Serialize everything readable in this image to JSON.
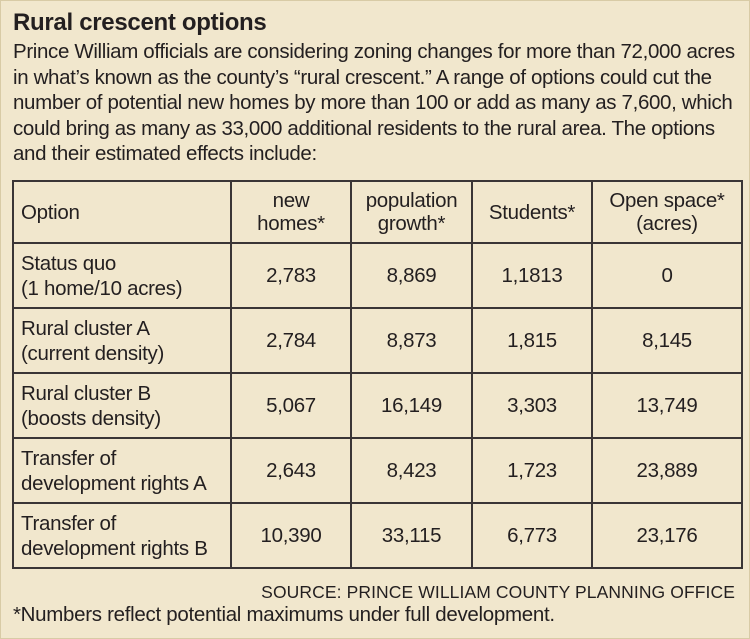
{
  "title": "Rural crescent options",
  "intro": "Prince William officials are considering zoning changes for more than 72,000 acres in what’s known as the county’s “rural crescent.” A range of options could cut the number of potential new homes by more than 100 or add as many as 7,600, which could bring as many as 33,000 additional residents to the rural area. The options and their estimated effects include:",
  "table": {
    "headers": {
      "option": "Option",
      "new_homes": [
        "new",
        "homes*"
      ],
      "population_growth": [
        "population",
        "growth*"
      ],
      "students": "Students*",
      "open_space": [
        "Open space*",
        "(acres)"
      ]
    },
    "rows": [
      {
        "option": [
          "Status quo",
          "(1 home/10 acres)"
        ],
        "new_homes": "2,783",
        "population_growth": "8,869",
        "students": "1,1813",
        "open_space": "0"
      },
      {
        "option": [
          "Rural cluster A",
          "(current density)"
        ],
        "new_homes": "2,784",
        "population_growth": "8,873",
        "students": "1,815",
        "open_space": "8,145"
      },
      {
        "option": [
          "Rural cluster B",
          "(boosts density)"
        ],
        "new_homes": "5,067",
        "population_growth": "16,149",
        "students": "3,303",
        "open_space": "13,749"
      },
      {
        "option": [
          "Transfer of",
          "development rights A"
        ],
        "new_homes": "2,643",
        "population_growth": "8,423",
        "students": "1,723",
        "open_space": "23,889"
      },
      {
        "option": [
          "Transfer of",
          "development rights B"
        ],
        "new_homes": "10,390",
        "population_growth": "33,115",
        "students": "6,773",
        "open_space": "23,176"
      }
    ]
  },
  "source": "SOURCE: PRINCE WILLIAM COUNTY PLANNING OFFICE",
  "footnote": "*Numbers reflect potential maximums under full development."
}
